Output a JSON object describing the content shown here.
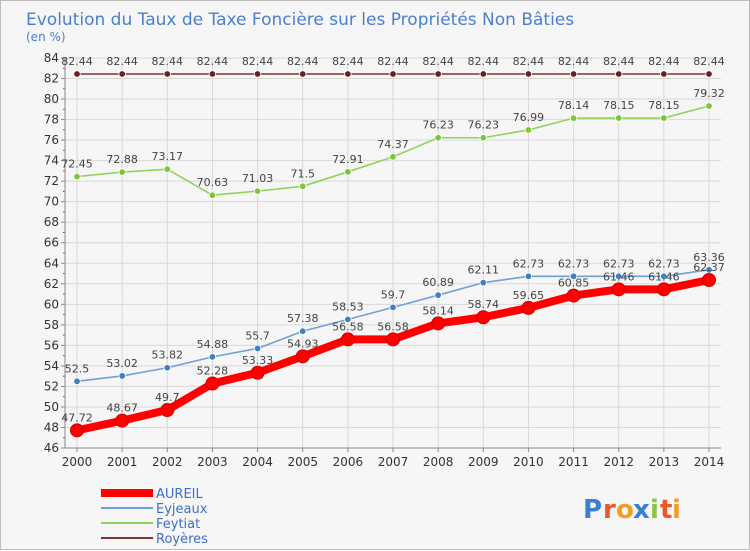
{
  "chart_data": {
    "type": "line",
    "title": "Evolution du Taux de Taxe Foncière sur les Propriétés Non Bâties",
    "subtitle": "(en %)",
    "xlabel": "",
    "ylabel": "",
    "x": [
      "2000",
      "2001",
      "2002",
      "2003",
      "2004",
      "2005",
      "2006",
      "2007",
      "2008",
      "2009",
      "2010",
      "2011",
      "2012",
      "2013",
      "2014"
    ],
    "ylim": [
      46,
      84
    ],
    "yticks": [
      "46",
      "48",
      "50",
      "52",
      "54",
      "56",
      "58",
      "60",
      "62",
      "64",
      "66",
      "68",
      "70",
      "72",
      "74",
      "76",
      "78",
      "80",
      "82",
      "84"
    ],
    "grid": true,
    "legend_position": "bottom-left",
    "series": [
      {
        "name": "AUREIL",
        "color": "#ff0000",
        "values": [
          47.72,
          48.67,
          49.7,
          52.28,
          53.33,
          54.93,
          56.58,
          56.58,
          58.14,
          58.74,
          59.65,
          60.85,
          61.46,
          61.46,
          62.37
        ],
        "labels": [
          "47.72",
          "48.67",
          "49.7",
          "52.28",
          "53.33",
          "54.93",
          "56.58",
          "56.58",
          "58.14",
          "58.74",
          "59.65",
          "60.85",
          "61.46",
          "61.46",
          "62.37"
        ]
      },
      {
        "name": "Eyjeaux",
        "color": "#6fa0d8",
        "values": [
          52.5,
          53.02,
          53.82,
          54.88,
          55.7,
          57.38,
          58.53,
          59.7,
          60.89,
          62.11,
          62.73,
          62.73,
          62.73,
          62.73,
          63.36
        ],
        "labels": [
          "52.5",
          "53.02",
          "53.82",
          "54.88",
          "55.7",
          "57.38",
          "58.53",
          "59.7",
          "60.89",
          "62.11",
          "62.73",
          "62.73",
          "62.73",
          "62.73",
          "63.36"
        ]
      },
      {
        "name": "Feytiat",
        "color": "#8fd45a",
        "values": [
          72.45,
          72.88,
          73.17,
          70.63,
          71.03,
          71.5,
          72.91,
          74.37,
          76.23,
          76.23,
          76.99,
          78.14,
          78.15,
          78.15,
          79.32
        ],
        "labels": [
          "72.45",
          "72.88",
          "73.17",
          "70.63",
          "71.03",
          "71.5",
          "72.91",
          "74.37",
          "76.23",
          "76.23",
          "76.99",
          "78.14",
          "78.15",
          "78.15",
          "79.32"
        ]
      },
      {
        "name": "Royères",
        "color": "#7a3535",
        "values": [
          82.44,
          82.44,
          82.44,
          82.44,
          82.44,
          82.44,
          82.44,
          82.44,
          82.44,
          82.44,
          82.44,
          82.44,
          82.44,
          82.44,
          82.44
        ],
        "labels": [
          "82.44",
          "82.44",
          "82.44",
          "82.44",
          "82.44",
          "82.44",
          "82.44",
          "82.44",
          "82.44",
          "82.44",
          "82.44",
          "82.44",
          "82.44",
          "82.44",
          "82.44"
        ]
      }
    ]
  },
  "logo": {
    "letters": [
      "P",
      "r",
      "o",
      "x",
      "i",
      "t",
      "i"
    ],
    "colors": [
      "#3a7fd0",
      "#e85a2a",
      "#f0a020",
      "#3a7fd0",
      "#8cc63f",
      "#e85a2a",
      "#f0a020"
    ]
  }
}
